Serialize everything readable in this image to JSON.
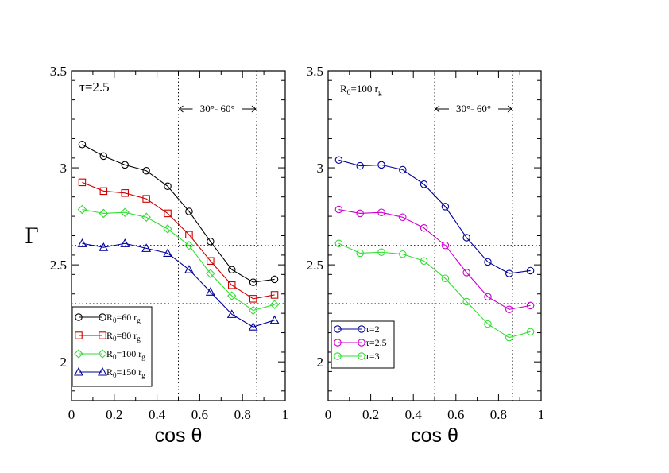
{
  "chart_data": [
    {
      "type": "line",
      "xlabel": "cos θ",
      "ylabel": "Γ",
      "xlim": [
        0,
        1
      ],
      "ylim": [
        1.8,
        3.5
      ],
      "xticks": [
        "0",
        "0.2",
        "0.4",
        "0.6",
        "0.8",
        "1"
      ],
      "yticks": [
        "2",
        "2.5",
        "3",
        "3.5"
      ],
      "annotation": "τ=2.5",
      "range_label": "30°- 60°",
      "vlines": [
        0.5,
        0.866
      ],
      "hlines": [
        2.3,
        2.6
      ],
      "legend_location": "lower-left",
      "x": [
        0.05,
        0.15,
        0.25,
        0.35,
        0.45,
        0.55,
        0.65,
        0.75,
        0.85,
        0.95
      ],
      "series": [
        {
          "name": "R0=60 rg",
          "legend": {
            "main": "R",
            "sub": "0",
            "mid": "=60 r",
            "sub2": "g"
          },
          "color": "#000000",
          "marker": "circle",
          "values": [
            3.12,
            3.06,
            3.015,
            2.985,
            2.905,
            2.775,
            2.62,
            2.475,
            2.41,
            2.425
          ]
        },
        {
          "name": "R0=80 rg",
          "legend": {
            "main": "R",
            "sub": "0",
            "mid": "=80 r",
            "sub2": "g"
          },
          "color": "#cc0000",
          "marker": "square",
          "values": [
            2.925,
            2.88,
            2.87,
            2.84,
            2.765,
            2.655,
            2.52,
            2.395,
            2.325,
            2.345
          ]
        },
        {
          "name": "R0=100 rg",
          "legend": {
            "main": "R",
            "sub": "0",
            "mid": "=100 r",
            "sub2": "g"
          },
          "color": "#33dd33",
          "marker": "diamond",
          "values": [
            2.785,
            2.765,
            2.77,
            2.745,
            2.685,
            2.6,
            2.455,
            2.34,
            2.265,
            2.295
          ]
        },
        {
          "name": "R0=150 rg",
          "legend": {
            "main": "R",
            "sub": "0",
            "mid": "=150 r",
            "sub2": "g"
          },
          "color": "#000099",
          "marker": "triangle",
          "values": [
            2.61,
            2.59,
            2.61,
            2.585,
            2.56,
            2.475,
            2.36,
            2.245,
            2.18,
            2.215
          ]
        }
      ]
    },
    {
      "type": "line",
      "xlabel": "cos θ",
      "ylabel": "",
      "xlim": [
        0,
        1
      ],
      "ylim": [
        1.8,
        3.5
      ],
      "xticks": [
        "0",
        "0.2",
        "0.4",
        "0.6",
        "0.8",
        "1"
      ],
      "yticks": [
        "2",
        "2.5",
        "3",
        "3.5"
      ],
      "annotation": {
        "main": "R",
        "sub": "0",
        "mid": "=100 r",
        "sub2": "g"
      },
      "range_label": "30°- 60°",
      "vlines": [
        0.5,
        0.866
      ],
      "hlines": [
        2.3,
        2.6
      ],
      "legend_location": "lower-left",
      "x": [
        0.05,
        0.15,
        0.25,
        0.35,
        0.45,
        0.55,
        0.65,
        0.75,
        0.85,
        0.95
      ],
      "series": [
        {
          "name": "τ=2",
          "color": "#000099",
          "marker": "circle",
          "values": [
            3.04,
            3.01,
            3.015,
            2.99,
            2.915,
            2.8,
            2.64,
            2.515,
            2.455,
            2.47
          ]
        },
        {
          "name": "τ=2.5",
          "color": "#cc00cc",
          "marker": "circle",
          "values": [
            2.785,
            2.765,
            2.77,
            2.745,
            2.69,
            2.6,
            2.46,
            2.335,
            2.27,
            2.29
          ]
        },
        {
          "name": "τ=3",
          "color": "#33dd33",
          "marker": "circle",
          "values": [
            2.61,
            2.56,
            2.565,
            2.555,
            2.52,
            2.43,
            2.31,
            2.195,
            2.125,
            2.155
          ]
        }
      ]
    }
  ]
}
